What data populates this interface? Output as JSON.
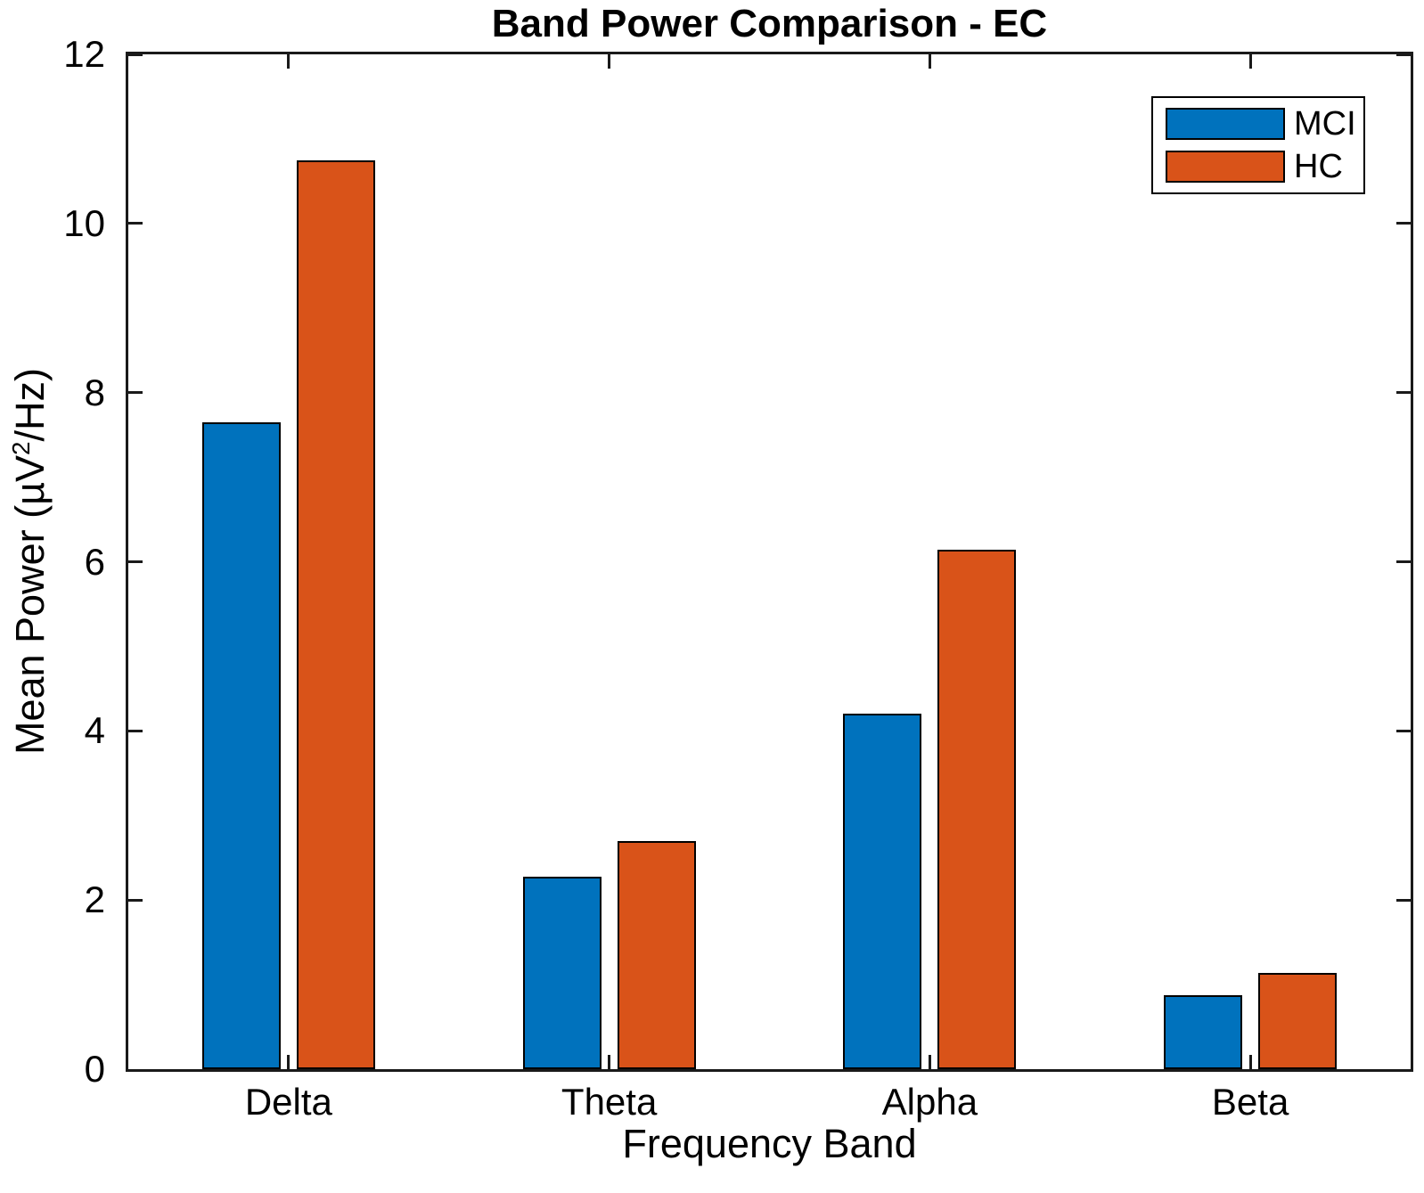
{
  "chart_data": {
    "type": "bar",
    "title": "Band Power Comparison - EC",
    "xlabel": "Frequency Band",
    "ylabel": "Mean Power (µV²/Hz)",
    "ylabel_parts": {
      "prefix": "Mean Power (µV",
      "superscript": "2",
      "suffix": "/Hz)"
    },
    "categories": [
      "Delta",
      "Theta",
      "Alpha",
      "Beta"
    ],
    "series": [
      {
        "name": "MCI",
        "color": "#0072BD",
        "values": [
          7.65,
          2.28,
          4.2,
          0.87
        ]
      },
      {
        "name": "HC",
        "color": "#D95319",
        "values": [
          10.75,
          2.7,
          6.14,
          1.14
        ]
      }
    ],
    "ylim": [
      0,
      12
    ],
    "yticks": [
      "0",
      "2",
      "4",
      "6",
      "8",
      "10",
      "12"
    ],
    "grid": false,
    "legend_position": "northeast",
    "bar_edge_color": "#000000",
    "axis_color": "#1a1a1a",
    "background_color": "#FFFFFF"
  }
}
